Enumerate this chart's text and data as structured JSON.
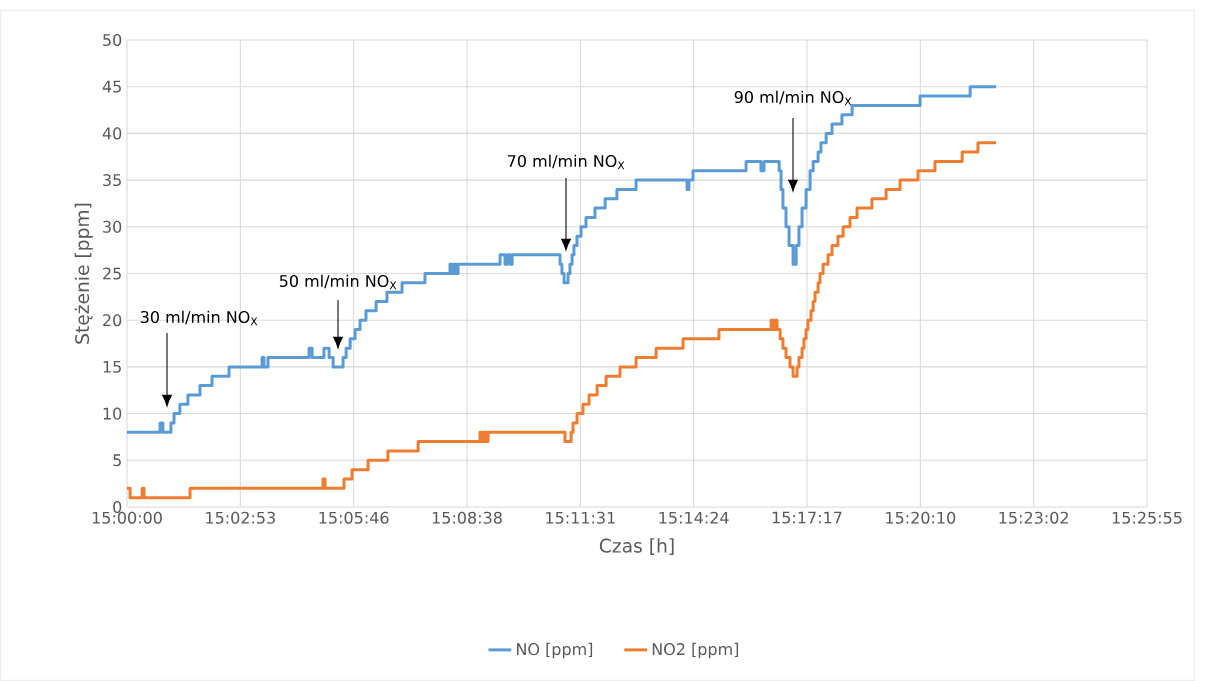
{
  "chart_data": {
    "type": "step",
    "xlabel": "Czas [h]",
    "ylabel": "Stężenie [ppm]",
    "xlim": [
      15.0,
      15.432
    ],
    "ylim": [
      0,
      50
    ],
    "xticks": [
      {
        "value": 15.0,
        "label": "15:00:00"
      },
      {
        "value": 15.048,
        "label": "15:02:53"
      },
      {
        "value": 15.096,
        "label": "15:05:46"
      },
      {
        "value": 15.144,
        "label": "15:08:38"
      },
      {
        "value": 15.192,
        "label": "15:11:31"
      },
      {
        "value": 15.24,
        "label": "15:14:24"
      },
      {
        "value": 15.288,
        "label": "15:17:17"
      },
      {
        "value": 15.336,
        "label": "15:20:10"
      },
      {
        "value": 15.384,
        "label": "15:23:02"
      },
      {
        "value": 15.432,
        "label": "15:25:55"
      }
    ],
    "yticks": [
      0,
      5,
      10,
      15,
      20,
      25,
      30,
      35,
      40,
      45,
      50
    ],
    "grid": true,
    "legend": "bottom",
    "line_style": "solid",
    "series": [
      {
        "name": "NO [ppm]",
        "color": "#5b9bd5",
        "x": [
          15.0,
          15.014,
          15.0152,
          15.0186,
          15.0199,
          15.0224,
          15.0258,
          15.0309,
          15.036,
          15.0432,
          15.0572,
          15.058,
          15.0597,
          15.0771,
          15.0784,
          15.0834,
          15.0856,
          15.0873,
          15.0915,
          15.0928,
          15.0945,
          15.0966,
          15.0987,
          15.1012,
          15.1055,
          15.1101,
          15.1165,
          15.1262,
          15.1368,
          15.1377,
          15.1385,
          15.1394,
          15.1402,
          15.158,
          15.1601,
          15.161,
          15.1622,
          15.1631,
          15.1834,
          15.1842,
          15.1851,
          15.1868,
          15.1876,
          15.1885,
          15.1893,
          15.1906,
          15.1923,
          15.1944,
          15.1982,
          15.2025,
          15.2075,
          15.2156,
          15.2372,
          15.238,
          15.2397,
          15.2622,
          15.2685,
          15.2698,
          15.2762,
          15.277,
          15.2778,
          15.2791,
          15.2804,
          15.2821,
          15.2834,
          15.2846,
          15.2859,
          15.2876,
          15.2893,
          15.2906,
          15.2927,
          15.2939,
          15.2961,
          15.2986,
          15.3028,
          15.3071,
          15.3359,
          15.3571,
          15.3681
        ],
        "values": [
          8,
          9,
          8,
          9,
          10,
          11,
          12,
          13,
          14,
          15,
          16,
          15,
          16,
          17,
          16,
          17,
          16,
          15,
          16,
          17,
          18,
          19,
          20,
          21,
          22,
          23,
          24,
          25,
          26,
          25,
          26,
          25,
          26,
          27,
          26,
          27,
          26,
          27,
          26,
          25,
          24,
          25,
          26,
          27,
          28,
          29,
          30,
          31,
          32,
          33,
          34,
          35,
          34,
          35,
          36,
          37,
          36,
          37,
          36,
          34,
          32,
          30,
          28,
          26,
          28,
          30,
          32,
          34,
          36,
          37,
          38,
          39,
          40,
          41,
          42,
          43,
          44,
          45,
          45
        ]
      },
      {
        "name": "NO2 [ppm]",
        "color": "#ed7d31",
        "x": [
          15.0,
          15.0013,
          15.0064,
          15.0072,
          15.0267,
          15.083,
          15.0839,
          15.0919,
          15.0953,
          15.1021,
          15.1105,
          15.1233,
          15.1495,
          15.1504,
          15.1512,
          15.1521,
          15.1529,
          15.1855,
          15.1881,
          15.1889,
          15.1906,
          15.1931,
          15.1957,
          15.1991,
          15.2029,
          15.2088,
          15.2156,
          15.2241,
          15.2355,
          15.2507,
          15.2728,
          15.2736,
          15.2745,
          15.2753,
          15.2766,
          15.2778,
          15.2791,
          15.2808,
          15.2821,
          15.2838,
          15.2846,
          15.2859,
          15.2867,
          15.2876,
          15.2884,
          15.2897,
          15.2906,
          15.2914,
          15.2927,
          15.2935,
          15.2948,
          15.2969,
          15.2986,
          15.3011,
          15.3033,
          15.3062,
          15.3092,
          15.3155,
          15.3215,
          15.3274,
          15.335,
          15.3422,
          15.3537,
          15.3604,
          15.3681
        ],
        "values": [
          2,
          1,
          2,
          1,
          2,
          3,
          2,
          3,
          4,
          5,
          6,
          7,
          8,
          7,
          8,
          7,
          8,
          7,
          8,
          9,
          10,
          11,
          12,
          13,
          14,
          15,
          16,
          17,
          18,
          19,
          20,
          19,
          20,
          19,
          18,
          17,
          16,
          15,
          14,
          15,
          16,
          17,
          18,
          19,
          20,
          21,
          22,
          23,
          24,
          25,
          26,
          27,
          28,
          29,
          30,
          31,
          32,
          33,
          34,
          35,
          36,
          37,
          38,
          39,
          39
        ]
      }
    ],
    "annotations": [
      "30 ml/min NO$_{X}$",
      "50 ml/min NO$_{X}$",
      "70 ml/min NO$_{X}$",
      "90 ml/min NO$_{X}$"
    ]
  }
}
